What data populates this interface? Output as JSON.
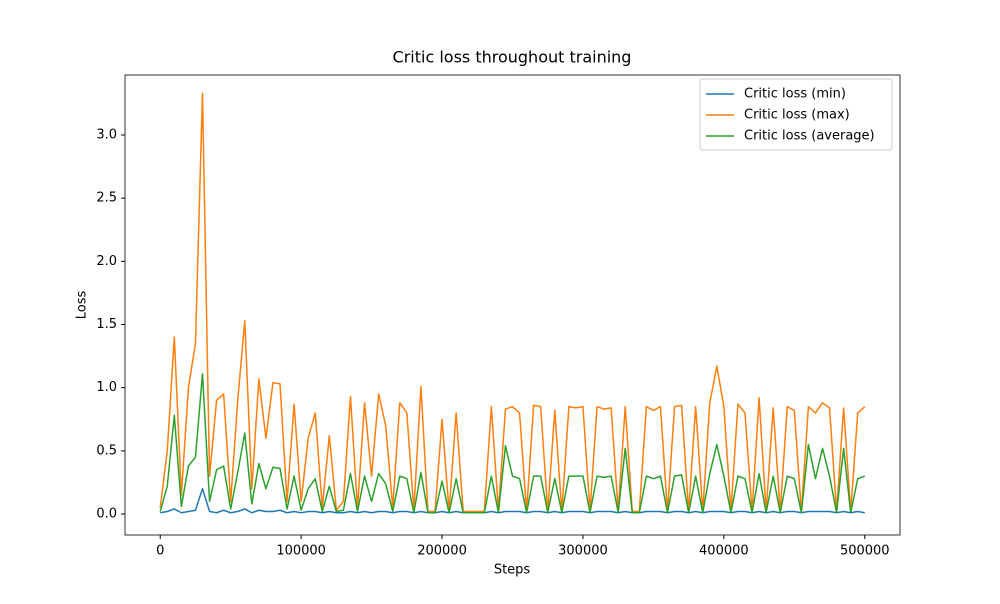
{
  "chart_data": {
    "type": "line",
    "title": "Critic loss throughout training",
    "x_label": "Steps",
    "y_label": "Loss",
    "x": [
      0,
      5000,
      10000,
      15000,
      20000,
      25000,
      30000,
      35000,
      40000,
      45000,
      50000,
      55000,
      60000,
      65000,
      70000,
      75000,
      80000,
      85000,
      90000,
      95000,
      100000,
      105000,
      110000,
      115000,
      120000,
      125000,
      130000,
      135000,
      140000,
      145000,
      150000,
      155000,
      160000,
      165000,
      170000,
      175000,
      180000,
      185000,
      190000,
      195000,
      200000,
      205000,
      210000,
      215000,
      220000,
      225000,
      230000,
      235000,
      240000,
      245000,
      250000,
      255000,
      260000,
      265000,
      270000,
      275000,
      280000,
      285000,
      290000,
      295000,
      300000,
      305000,
      310000,
      315000,
      320000,
      325000,
      330000,
      335000,
      340000,
      345000,
      350000,
      355000,
      360000,
      365000,
      370000,
      375000,
      380000,
      385000,
      390000,
      395000,
      400000,
      405000,
      410000,
      415000,
      420000,
      425000,
      430000,
      435000,
      440000,
      445000,
      450000,
      455000,
      460000,
      465000,
      470000,
      475000,
      480000,
      485000,
      490000,
      495000,
      500000
    ],
    "series": [
      {
        "name": "Critic loss (min)",
        "color": "#1f77b4",
        "values": [
          0.01,
          0.02,
          0.04,
          0.01,
          0.02,
          0.03,
          0.2,
          0.02,
          0.01,
          0.03,
          0.01,
          0.02,
          0.04,
          0.01,
          0.03,
          0.02,
          0.02,
          0.03,
          0.01,
          0.02,
          0.01,
          0.02,
          0.02,
          0.01,
          0.02,
          0.01,
          0.01,
          0.02,
          0.01,
          0.02,
          0.01,
          0.02,
          0.02,
          0.01,
          0.02,
          0.02,
          0.01,
          0.02,
          0.01,
          0.01,
          0.02,
          0.01,
          0.02,
          0.01,
          0.01,
          0.01,
          0.01,
          0.02,
          0.01,
          0.02,
          0.02,
          0.02,
          0.01,
          0.02,
          0.02,
          0.01,
          0.02,
          0.01,
          0.02,
          0.02,
          0.02,
          0.01,
          0.02,
          0.02,
          0.02,
          0.01,
          0.02,
          0.01,
          0.01,
          0.02,
          0.02,
          0.02,
          0.01,
          0.02,
          0.02,
          0.01,
          0.02,
          0.01,
          0.02,
          0.02,
          0.02,
          0.01,
          0.02,
          0.02,
          0.01,
          0.02,
          0.01,
          0.02,
          0.01,
          0.02,
          0.02,
          0.01,
          0.02,
          0.02,
          0.02,
          0.02,
          0.01,
          0.02,
          0.01,
          0.02,
          0.01
        ]
      },
      {
        "name": "Critic loss (max)",
        "color": "#ff7f0e",
        "values": [
          0.05,
          0.5,
          1.4,
          0.15,
          1.0,
          1.35,
          3.33,
          0.3,
          0.9,
          0.95,
          0.1,
          0.9,
          1.53,
          0.2,
          1.07,
          0.6,
          1.04,
          1.03,
          0.1,
          0.87,
          0.1,
          0.6,
          0.8,
          0.05,
          0.62,
          0.03,
          0.1,
          0.93,
          0.05,
          0.88,
          0.3,
          0.95,
          0.7,
          0.05,
          0.88,
          0.8,
          0.03,
          1.01,
          0.02,
          0.02,
          0.75,
          0.02,
          0.8,
          0.02,
          0.02,
          0.02,
          0.02,
          0.85,
          0.02,
          0.83,
          0.85,
          0.8,
          0.02,
          0.86,
          0.85,
          0.02,
          0.82,
          0.02,
          0.85,
          0.84,
          0.85,
          0.02,
          0.85,
          0.83,
          0.84,
          0.02,
          0.85,
          0.02,
          0.02,
          0.85,
          0.82,
          0.85,
          0.02,
          0.85,
          0.86,
          0.02,
          0.85,
          0.02,
          0.88,
          1.17,
          0.85,
          0.02,
          0.87,
          0.8,
          0.02,
          0.92,
          0.02,
          0.84,
          0.02,
          0.85,
          0.82,
          0.02,
          0.85,
          0.8,
          0.88,
          0.84,
          0.02,
          0.84,
          0.02,
          0.8,
          0.85
        ]
      },
      {
        "name": "Critic loss (average)",
        "color": "#2ca02c",
        "values": [
          0.02,
          0.22,
          0.78,
          0.06,
          0.38,
          0.45,
          1.11,
          0.1,
          0.35,
          0.38,
          0.04,
          0.33,
          0.64,
          0.08,
          0.4,
          0.2,
          0.37,
          0.36,
          0.04,
          0.3,
          0.03,
          0.2,
          0.28,
          0.02,
          0.22,
          0.02,
          0.03,
          0.32,
          0.02,
          0.3,
          0.1,
          0.32,
          0.24,
          0.02,
          0.3,
          0.28,
          0.01,
          0.33,
          0.01,
          0.01,
          0.26,
          0.01,
          0.28,
          0.01,
          0.01,
          0.01,
          0.01,
          0.3,
          0.01,
          0.54,
          0.3,
          0.28,
          0.01,
          0.3,
          0.3,
          0.01,
          0.28,
          0.01,
          0.3,
          0.3,
          0.3,
          0.01,
          0.3,
          0.29,
          0.3,
          0.01,
          0.52,
          0.01,
          0.01,
          0.3,
          0.28,
          0.3,
          0.01,
          0.3,
          0.31,
          0.01,
          0.3,
          0.01,
          0.32,
          0.55,
          0.3,
          0.01,
          0.3,
          0.28,
          0.01,
          0.32,
          0.01,
          0.3,
          0.01,
          0.3,
          0.28,
          0.01,
          0.55,
          0.28,
          0.52,
          0.3,
          0.01,
          0.52,
          0.01,
          0.28,
          0.3
        ]
      }
    ],
    "xlim": [
      -25000,
      525000
    ],
    "xticks": [
      0,
      100000,
      200000,
      300000,
      400000,
      500000
    ],
    "ylim": [
      -0.166,
      3.475
    ],
    "yticks": [
      {
        "value": 0,
        "label": "0.0"
      },
      {
        "value": 0.5,
        "label": "0.5"
      },
      {
        "value": 1,
        "label": "1.0"
      },
      {
        "value": 1.5,
        "label": "1.5"
      },
      {
        "value": 2,
        "label": "2.0"
      },
      {
        "value": 2.5,
        "label": "2.5"
      },
      {
        "value": 3,
        "label": "3.0"
      }
    ],
    "legend": "upper right"
  }
}
